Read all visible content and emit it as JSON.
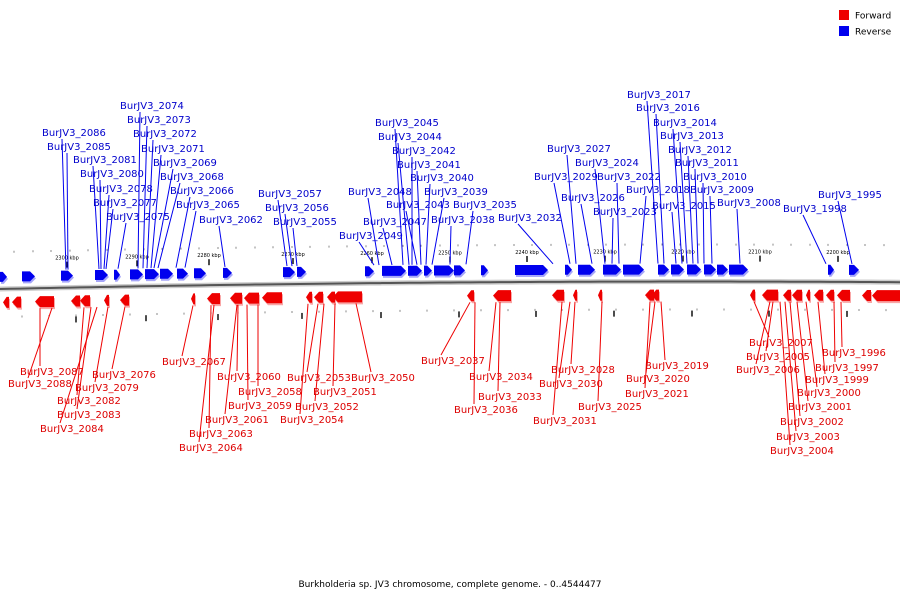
{
  "caption": "Burkholderia sp. JV3 chromosome, complete genome. - 0..4544477",
  "legend": [
    {
      "label": "Forward",
      "color": "#ee0000"
    },
    {
      "label": "Reverse",
      "color": "#0000ee"
    }
  ],
  "colors": {
    "forward": "#ee0000",
    "reverse": "#0000ee",
    "backbone": "#555555"
  },
  "ticks": [
    "2300 kbp",
    "2290 kbp",
    "2280 kbp",
    "2270 kbp",
    "2260 kbp",
    "2250 kbp",
    "2240 kbp",
    "2230 kbp",
    "2220 kbp",
    "2210 kbp",
    "2200 kbp"
  ],
  "reverse_genes": [
    "BurJV3_2086",
    "BurJV3_2085",
    "BurJV3_2081",
    "BurJV3_2080",
    "BurJV3_2078",
    "BurJV3_2077",
    "BurJV3_2075",
    "BurJV3_2074",
    "BurJV3_2073",
    "BurJV3_2072",
    "BurJV3_2071",
    "BurJV3_2069",
    "BurJV3_2068",
    "BurJV3_2066",
    "BurJV3_2065",
    "BurJV3_2062",
    "BurJV3_2057",
    "BurJV3_2056",
    "BurJV3_2055",
    "BurJV3_2049",
    "BurJV3_2048",
    "BurJV3_2047",
    "BurJV3_2045",
    "BurJV3_2044",
    "BurJV3_2043",
    "BurJV3_2042",
    "BurJV3_2041",
    "BurJV3_2040",
    "BurJV3_2039",
    "BurJV3_2038",
    "BurJV3_2035",
    "BurJV3_2032",
    "BurJV3_2029",
    "BurJV3_2027",
    "BurJV3_2026",
    "BurJV3_2024",
    "BurJV3_2023",
    "BurJV3_2022",
    "BurJV3_2018",
    "BurJV3_2017",
    "BurJV3_2016",
    "BurJV3_2015",
    "BurJV3_2014",
    "BurJV3_2013",
    "BurJV3_2012",
    "BurJV3_2011",
    "BurJV3_2010",
    "BurJV3_2009",
    "BurJV3_2008",
    "BurJV3_1998",
    "BurJV3_1995"
  ],
  "forward_genes": [
    "BurJV3_2087",
    "BurJV3_2088",
    "BurJV3_2082",
    "BurJV3_2083",
    "BurJV3_2084",
    "BurJV3_2079",
    "BurJV3_2076",
    "BurJV3_2067",
    "BurJV3_2063",
    "BurJV3_2064",
    "BurJV3_2061",
    "BurJV3_2060",
    "BurJV3_2059",
    "BurJV3_2058",
    "BurJV3_2054",
    "BurJV3_2053",
    "BurJV3_2052",
    "BurJV3_2051",
    "BurJV3_2050",
    "BurJV3_2037",
    "BurJV3_2036",
    "BurJV3_2034",
    "BurJV3_2033",
    "BurJV3_2031",
    "BurJV3_2030",
    "BurJV3_2028",
    "BurJV3_2025",
    "BurJV3_2021",
    "BurJV3_2020",
    "BurJV3_2019",
    "BurJV3_2007",
    "BurJV3_2006",
    "BurJV3_2005",
    "BurJV3_2004",
    "BurJV3_2003",
    "BurJV3_2002",
    "BurJV3_2001",
    "BurJV3_2000",
    "BurJV3_1999",
    "BurJV3_1997",
    "BurJV3_1996"
  ]
}
